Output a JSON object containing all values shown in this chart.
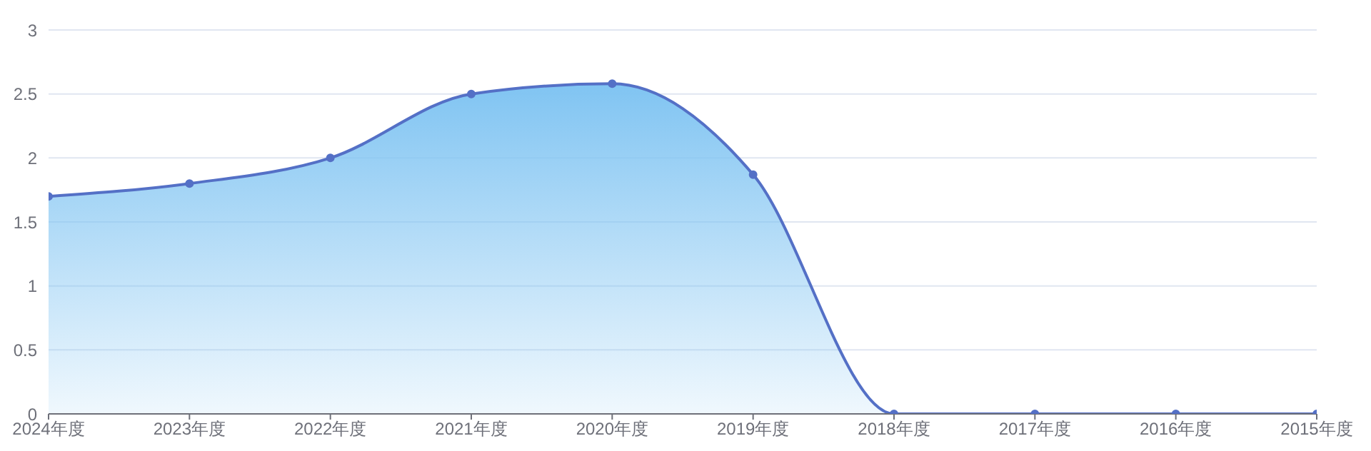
{
  "chart_data": {
    "type": "area",
    "categories": [
      "2024年度",
      "2023年度",
      "2022年度",
      "2021年度",
      "2020年度",
      "2019年度",
      "2018年度",
      "2017年度",
      "2016年度",
      "2015年度"
    ],
    "series": [
      {
        "color": "#5470c6",
        "values": [
          1.7,
          1.8,
          2.0,
          2.5,
          2.58,
          1.87,
          0,
          0,
          0,
          0
        ]
      }
    ],
    "ylim": [
      0,
      3
    ],
    "yticks": [
      0,
      0.5,
      1,
      1.5,
      2,
      2.5,
      3
    ],
    "grid": "y",
    "marker": "circle"
  }
}
